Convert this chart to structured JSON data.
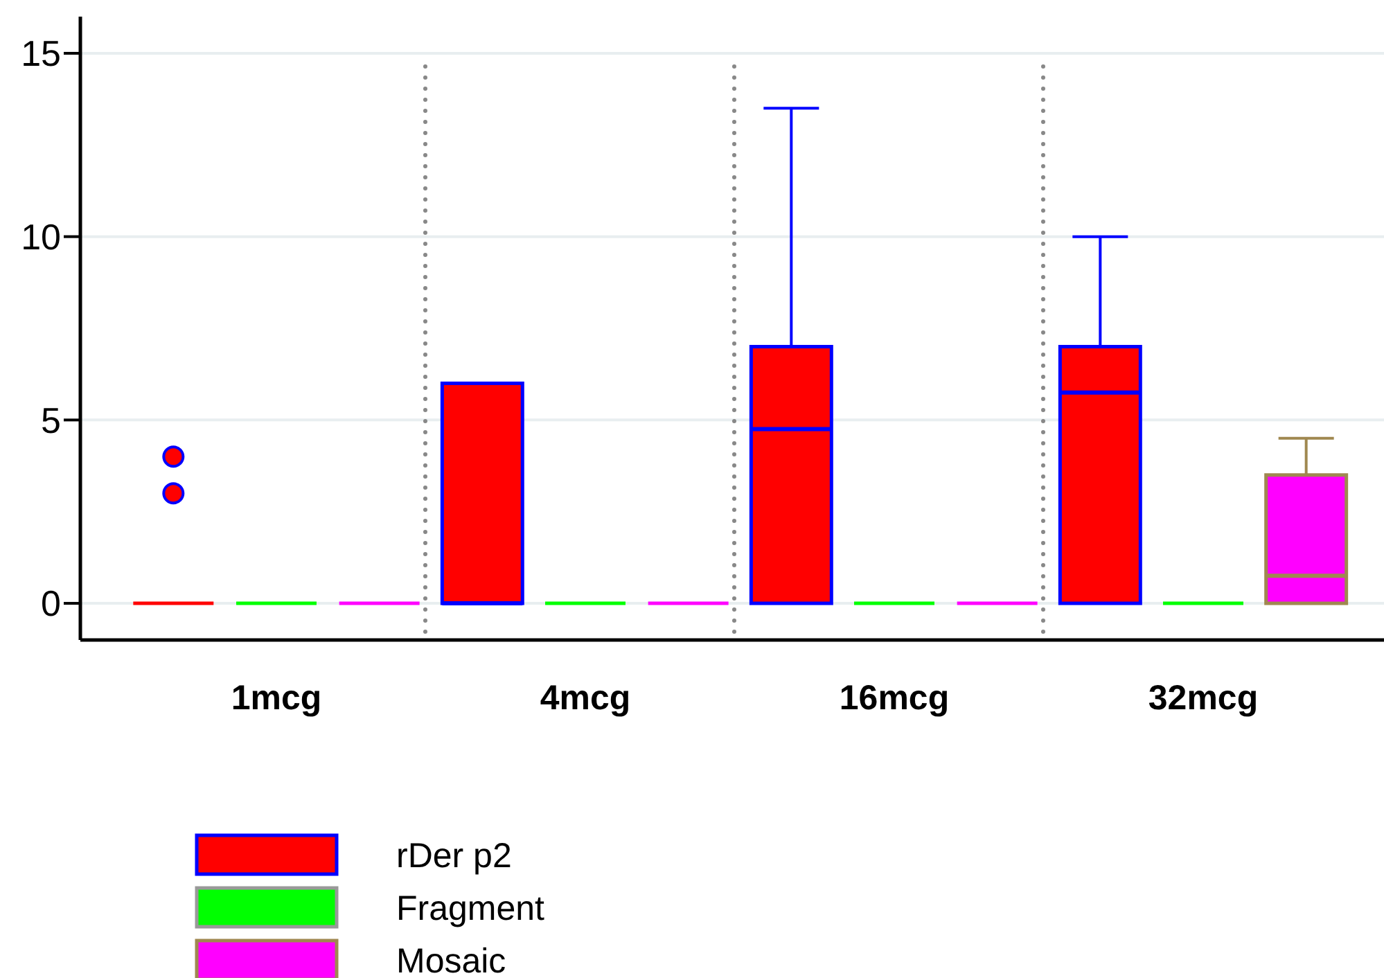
{
  "chart_data": {
    "type": "box",
    "categories": [
      "1mcg",
      "4mcg",
      "16mcg",
      "32mcg"
    ],
    "ylim": [
      -1,
      16
    ],
    "yticks": [
      0,
      5,
      10,
      15
    ],
    "grid": "y",
    "legend": "bottom left",
    "series": [
      {
        "name": "rDer p2",
        "color": "#ff0000",
        "boxes": [
          {
            "low": 0,
            "q1": 0,
            "median": 0,
            "q3": 0,
            "high": 0,
            "outliers": [
              3,
              4
            ]
          },
          {
            "low": 0,
            "q1": 0,
            "median": 0,
            "q3": 6,
            "high": 6
          },
          {
            "low": 0,
            "q1": 0,
            "median": 4.75,
            "q3": 7,
            "high": 13.5
          },
          {
            "low": 0,
            "q1": 0,
            "median": 5.75,
            "q3": 7,
            "high": 10
          }
        ]
      },
      {
        "name": "Fragment",
        "color": "#00ff00",
        "boxes": [
          {
            "low": 0,
            "q1": 0,
            "median": 0,
            "q3": 0,
            "high": 0
          },
          {
            "low": 0,
            "q1": 0,
            "median": 0,
            "q3": 0,
            "high": 0
          },
          {
            "low": 0,
            "q1": 0,
            "median": 0,
            "q3": 0,
            "high": 0
          },
          {
            "low": 0,
            "q1": 0,
            "median": 0,
            "q3": 0,
            "high": 0
          }
        ]
      },
      {
        "name": "Mosaic",
        "color": "#ff00ff",
        "boxes": [
          {
            "low": 0,
            "q1": 0,
            "median": 0,
            "q3": 0,
            "high": 0
          },
          {
            "low": 0,
            "q1": 0,
            "median": 0,
            "q3": 0,
            "high": 0
          },
          {
            "low": 0,
            "q1": 0,
            "median": 0,
            "q3": 0,
            "high": 0
          },
          {
            "low": 0,
            "q1": 0.0,
            "median": 0.75,
            "q3": 3.5,
            "high": 4.5
          }
        ]
      }
    ]
  }
}
